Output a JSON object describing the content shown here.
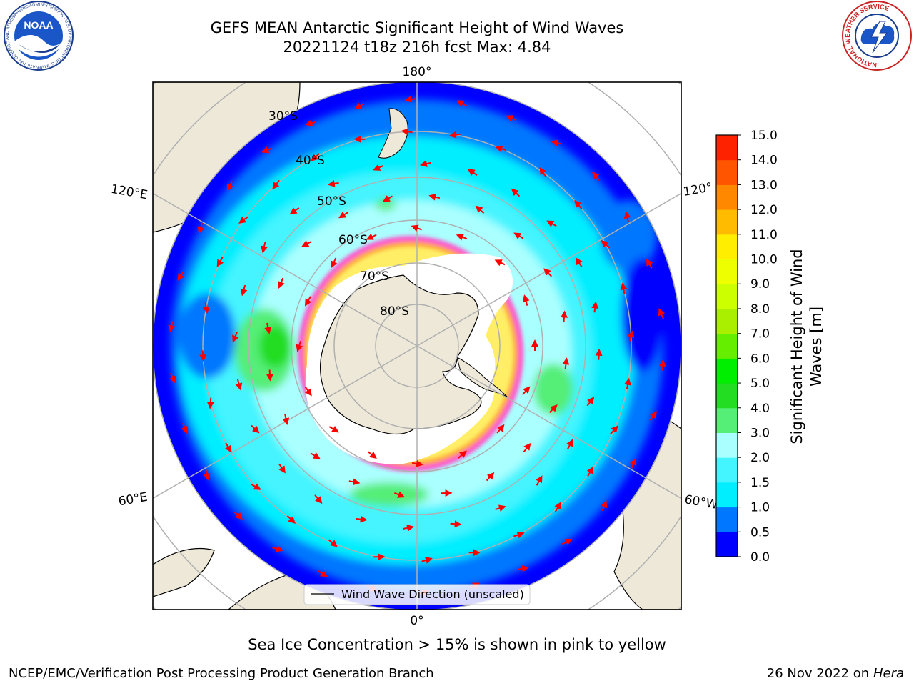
{
  "header": {
    "title_line1": "GEFS MEAN Antarctic Significant Height of Wind Waves",
    "title_line2": "20221124 t18z 216h fcst   Max: 4.84"
  },
  "logos": {
    "left": "noaa-logo",
    "right": "national-weather-service-logo",
    "noaa_text": "NOAA",
    "noaa_ring_text": "NATIONAL OCEANIC AND ATMOSPHERIC ADMINISTRATION · U.S. DEPARTMENT OF COMMERCE",
    "nws_ring_text": "NATIONAL WEATHER SERVICE"
  },
  "map": {
    "projection": "south-polar-stereographic",
    "lat_labels": [
      "30°S",
      "40°S",
      "50°S",
      "60°S",
      "70°S",
      "80°S"
    ],
    "lon_labels": {
      "top": "180°",
      "bottom": "0°",
      "left_upper": "120°E",
      "left_lower": "60°E",
      "right_upper": "120°",
      "right_lower": "60°W"
    },
    "colors": {
      "land": "#ede8d8",
      "ice_shelf": "#ffffff",
      "gridline": "#b0b0b0",
      "arrow": "#ff0000",
      "sea_ice_pink": "#ff55cc",
      "sea_ice_orange": "#ffaa33",
      "sea_ice_yellow": "#ffee66"
    },
    "legend_label": "Wind Wave Direction (unscaled)",
    "note": "Sea Ice Concentration > 15% is shown in pink to yellow"
  },
  "colorbar": {
    "title": "Significant Height of Wind Waves [m]",
    "title_line1": "Significant Height of Wind",
    "title_line2": "Waves [m]",
    "ticks": [
      "0.0",
      "0.5",
      "1.0",
      "1.5",
      "2.0",
      "3.0",
      "4.0",
      "5.0",
      "6.0",
      "7.0",
      "8.0",
      "9.0",
      "10.0",
      "11.0",
      "12.0",
      "13.0",
      "14.0",
      "15.0"
    ],
    "colors": [
      "#0000ff",
      "#0077ff",
      "#00eeff",
      "#44f4ff",
      "#aaffff",
      "#55ee77",
      "#22dd22",
      "#00ee00",
      "#66ee00",
      "#aaee00",
      "#ccff00",
      "#eeff00",
      "#ffee00",
      "#ffbb00",
      "#ff8800",
      "#ff5500",
      "#ff2200"
    ]
  },
  "footer": {
    "left": "NCEP/EMC/Verification Post Processing Product Generation Branch",
    "right_date": "26 Nov 2022 on",
    "right_machine": "Hera"
  }
}
